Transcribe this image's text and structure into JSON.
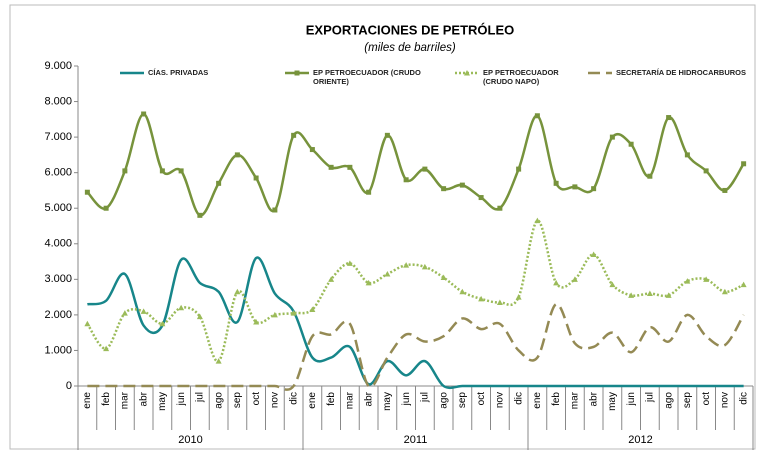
{
  "chart_data": {
    "type": "line",
    "title": "EXPORTACIONES DE PETRÓLEO",
    "subtitle": "(miles de barriles)",
    "categories": [
      "ene",
      "feb",
      "mar",
      "abr",
      "may",
      "jun",
      "jul",
      "ago",
      "sep",
      "oct",
      "nov",
      "dic",
      "ene",
      "feb",
      "mar",
      "abr",
      "may",
      "jun",
      "jul",
      "ago",
      "sep",
      "oct",
      "nov",
      "dic",
      "ene",
      "feb",
      "mar",
      "abr",
      "may",
      "jun",
      "jul",
      "ago",
      "sep",
      "oct",
      "nov",
      "dic"
    ],
    "groups": [
      "2010",
      "2011",
      "2012"
    ],
    "ylim": [
      0,
      9000
    ],
    "yticks": [
      0,
      {
        "value": 1000,
        "label": "1.000"
      },
      {
        "value": 2000,
        "label": "2.000"
      },
      {
        "value": 3000,
        "label": "3.000"
      },
      {
        "value": 4000,
        "label": "4.000"
      },
      {
        "value": 5000,
        "label": "5.000"
      },
      {
        "value": 6000,
        "label": "6.000"
      },
      {
        "value": 7000,
        "label": "7.000"
      },
      {
        "value": 8000,
        "label": "8.000"
      },
      {
        "value": 9000,
        "label": "9.000"
      }
    ],
    "series": [
      {
        "name": "CÍAS. PRIVADAS",
        "color": "#17868a",
        "style": "solid",
        "marker": "none",
        "values": [
          2300,
          2400,
          3150,
          1700,
          1700,
          3550,
          2900,
          2650,
          1800,
          3600,
          2600,
          2100,
          800,
          800,
          1100,
          50,
          700,
          300,
          700,
          0,
          0,
          0,
          0,
          0,
          0,
          0,
          0,
          0,
          0,
          0,
          0,
          0,
          0,
          0,
          0,
          0
        ]
      },
      {
        "name": "EP PETROECUADOR (CRUDO ORIENTE)",
        "color": "#77933c",
        "style": "solid",
        "marker": "square",
        "values": [
          5450,
          5000,
          6050,
          7650,
          6050,
          6050,
          4800,
          5700,
          6500,
          5850,
          4950,
          7050,
          6650,
          6150,
          6150,
          5450,
          7050,
          5800,
          6100,
          5550,
          5650,
          5300,
          5000,
          6100,
          7600,
          5700,
          5600,
          5550,
          7000,
          6800,
          5900,
          7550,
          6500,
          6050,
          5500,
          6250
        ]
      },
      {
        "name": "EP PETROECUADOR (CRUDO NAPO)",
        "color": "#9bbb59",
        "style": "dotted",
        "marker": "triangle",
        "values": [
          1750,
          1050,
          2050,
          2100,
          1750,
          2200,
          1950,
          700,
          2650,
          1800,
          2000,
          2050,
          2150,
          3000,
          3450,
          2900,
          3150,
          3400,
          3350,
          3050,
          2650,
          2450,
          2350,
          2500,
          4650,
          2900,
          3000,
          3700,
          2850,
          2550,
          2600,
          2550,
          2950,
          3000,
          2650,
          2850
        ]
      },
      {
        "name": "SECRETARÍA DE HIDROCARBUROS",
        "color": "#948a54",
        "style": "dashed",
        "marker": "none",
        "values": [
          0,
          0,
          0,
          0,
          0,
          0,
          0,
          0,
          0,
          0,
          0,
          0,
          1400,
          1450,
          1750,
          0,
          800,
          1450,
          1250,
          1400,
          1900,
          1600,
          1750,
          1000,
          800,
          2300,
          1200,
          1100,
          1500,
          950,
          1650,
          1250,
          2000,
          1400,
          1150,
          2000
        ]
      }
    ]
  }
}
